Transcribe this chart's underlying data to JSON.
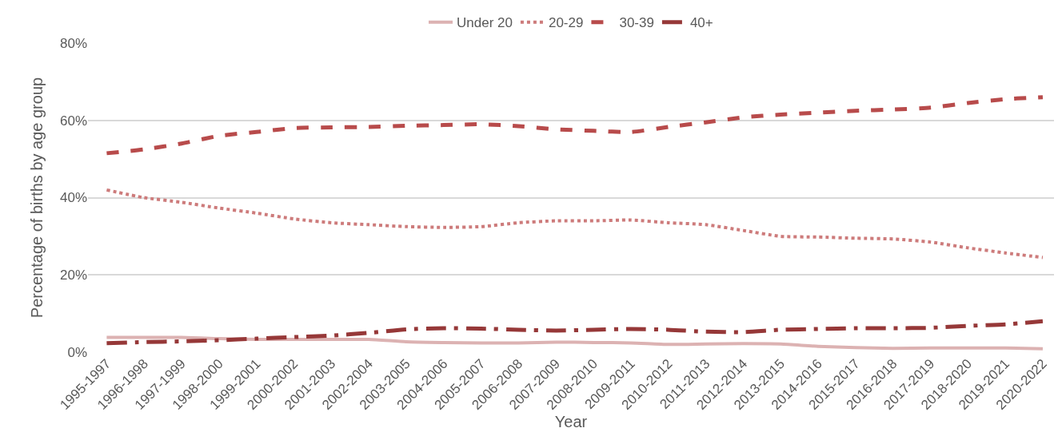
{
  "chart_data": {
    "type": "line",
    "xlabel": "Year",
    "ylabel": "Percentage of births by age group",
    "categories": [
      "1995-1997",
      "1996-1998",
      "1997-1999",
      "1998-2000",
      "1999-2001",
      "2000-2002",
      "2001-2003",
      "2002-2004",
      "2003-2005",
      "2004-2006",
      "2005-2007",
      "2006-2008",
      "2007-2009",
      "2008-2010",
      "2009-2011",
      "2010-2012",
      "2011-2013",
      "2012-2014",
      "2013-2015",
      "2014-2016",
      "2015-2017",
      "2016-2018",
      "2017-2019",
      "2018-2020",
      "2019-2021",
      "2020-2022"
    ],
    "series": [
      {
        "name": "Under 20",
        "color": "#dcb2b2",
        "line_style": "solid",
        "values": [
          3.8,
          3.8,
          3.8,
          3.5,
          3.3,
          3.3,
          3.3,
          3.3,
          2.7,
          2.5,
          2.4,
          2.4,
          2.6,
          2.5,
          2.4,
          2.0,
          2.1,
          2.2,
          2.1,
          1.5,
          1.2,
          1.0,
          1.1,
          1.1,
          1.1,
          0.9
        ]
      },
      {
        "name": "20-29",
        "color": "#cd7b7b",
        "line_style": "dotted",
        "values": [
          42,
          40,
          38.8,
          37.3,
          36,
          34.5,
          33.5,
          33,
          32.5,
          32.3,
          32.5,
          33.5,
          34,
          34,
          34.2,
          33.5,
          33,
          31.5,
          30,
          29.8,
          29.5,
          29.3,
          28.5,
          27,
          25.7,
          24.5
        ]
      },
      {
        "name": "30-39",
        "color": "#b84b4b",
        "line_style": "dashed",
        "values": [
          51.5,
          52.5,
          54,
          56,
          57,
          58,
          58.2,
          58.3,
          58.6,
          58.8,
          59,
          58.5,
          57.7,
          57.3,
          57,
          58.3,
          59.5,
          60.8,
          61.5,
          62,
          62.5,
          62.8,
          63.3,
          64.5,
          65.5,
          66
        ]
      },
      {
        "name": "40+",
        "color": "#963838",
        "line_style": "dashdot",
        "values": [
          2.3,
          2.6,
          2.8,
          3.1,
          3.5,
          3.9,
          4.3,
          5.0,
          5.9,
          6.2,
          6.1,
          5.8,
          5.6,
          5.8,
          6.0,
          5.8,
          5.3,
          5.2,
          5.8,
          6.0,
          6.2,
          6.2,
          6.3,
          6.8,
          7.2,
          8.0
        ]
      }
    ],
    "ylim": [
      0,
      80
    ],
    "yticks": [
      {
        "value": 0,
        "label": "0%"
      },
      {
        "value": 20,
        "label": "20%"
      },
      {
        "value": 40,
        "label": "40%"
      },
      {
        "value": 60,
        "label": "60%"
      },
      {
        "value": 80,
        "label": "80%"
      }
    ],
    "grid": "y",
    "legend": "top",
    "marker": "none"
  }
}
